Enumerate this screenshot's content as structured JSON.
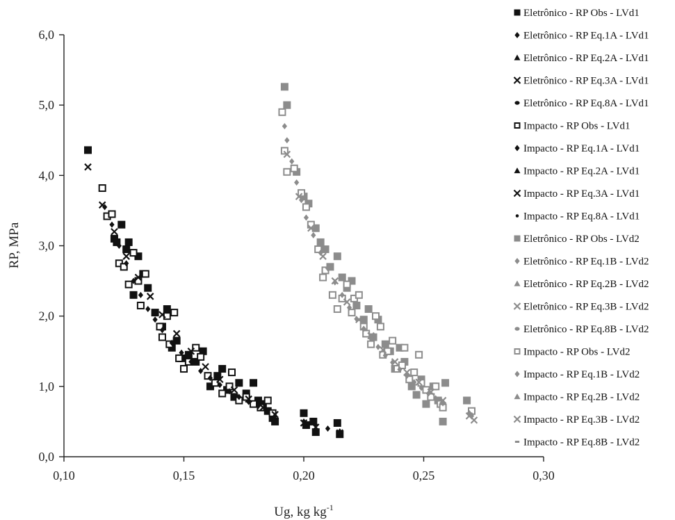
{
  "chart_data": {
    "type": "scatter",
    "title": "",
    "xlabel": "Ug, kg kg",
    "xlabel_sup": "-1",
    "ylabel": "RP, MPa",
    "xlim": [
      0.1,
      0.3
    ],
    "ylim": [
      0.0,
      6.0
    ],
    "x_ticks": [
      "0,10",
      "0,15",
      "0,20",
      "0,25",
      "0,30"
    ],
    "y_ticks": [
      "0,0",
      "1,0",
      "2,0",
      "3,0",
      "4,0",
      "5,0",
      "6,0"
    ],
    "grid": false,
    "legend_position": "right",
    "colors": {
      "lvd1": "#111111",
      "lvd2": "#8c8c8c"
    },
    "legend": [
      {
        "label": "Eletrônico - RP Obs - LVd1",
        "marker": "square-filled",
        "group": "lvd1"
      },
      {
        "label": "Eletrônico - RP Eq.1A - LVd1",
        "marker": "diamond",
        "group": "lvd1"
      },
      {
        "label": "Eletrônico - RP Eq.2A - LVd1",
        "marker": "triangle",
        "group": "lvd1"
      },
      {
        "label": "Eletrônico - RP Eq.3A - LVd1",
        "marker": "x",
        "group": "lvd1"
      },
      {
        "label": "Eletrônico - RP Eq.8A - LVd1",
        "marker": "circle",
        "group": "lvd1"
      },
      {
        "label": "Impacto - RP Obs - LVd1",
        "marker": "square-open",
        "group": "lvd1"
      },
      {
        "label": "Impacto - RP Eq.1A - LVd1",
        "marker": "diamond",
        "group": "lvd1"
      },
      {
        "label": "Impacto - RP Eq.2A - LVd1",
        "marker": "triangle",
        "group": "lvd1"
      },
      {
        "label": "Impacto - RP Eq.3A - LVd1",
        "marker": "x",
        "group": "lvd1"
      },
      {
        "label": "Impacto - RP Eq.8A - LVd1",
        "marker": "dot",
        "group": "lvd1"
      },
      {
        "label": "Eletrônico - RP Obs - LVd2",
        "marker": "square-filled",
        "group": "lvd2"
      },
      {
        "label": "Eletrônico - RP Eq.1B - LVd2",
        "marker": "diamond",
        "group": "lvd2"
      },
      {
        "label": "Eletrônico - RP Eq.2B - LVd2",
        "marker": "triangle",
        "group": "lvd2"
      },
      {
        "label": "Eletrônico - RP Eq.3B - LVd2",
        "marker": "x",
        "group": "lvd2"
      },
      {
        "label": "Eletrônico - RP Eq.8B - LVd2",
        "marker": "circle",
        "group": "lvd2"
      },
      {
        "label": "Impacto - RP Obs - LVd2",
        "marker": "square-open",
        "group": "lvd2"
      },
      {
        "label": "Impacto - RP Eq.1B - LVd2",
        "marker": "diamond",
        "group": "lvd2"
      },
      {
        "label": "Impacto - RP Eq.2B - LVd2",
        "marker": "triangle",
        "group": "lvd2"
      },
      {
        "label": "Impacto - RP Eq.3B - LVd2",
        "marker": "x",
        "group": "lvd2"
      },
      {
        "label": "Impacto - RP Eq.8B - LVd2",
        "marker": "dash",
        "group": "lvd2"
      }
    ],
    "series": [
      {
        "group": "lvd1",
        "marker": "square-filled",
        "x": [
          0.11,
          0.121,
          0.122,
          0.124,
          0.126,
          0.127,
          0.129,
          0.131,
          0.133,
          0.135,
          0.138,
          0.141,
          0.143,
          0.145,
          0.147,
          0.149,
          0.152,
          0.155,
          0.158,
          0.161,
          0.164,
          0.166,
          0.168,
          0.171,
          0.173,
          0.176,
          0.179,
          0.181,
          0.183,
          0.185,
          0.187,
          0.188,
          0.2,
          0.201,
          0.204,
          0.205,
          0.214,
          0.215
        ],
        "y": [
          4.36,
          3.1,
          3.05,
          3.3,
          2.95,
          3.05,
          2.3,
          2.85,
          2.6,
          2.4,
          2.05,
          1.85,
          2.1,
          1.55,
          1.65,
          1.4,
          1.45,
          1.35,
          1.5,
          1.0,
          1.15,
          1.25,
          0.95,
          0.85,
          1.05,
          0.9,
          1.05,
          0.8,
          0.75,
          0.65,
          0.55,
          0.5,
          0.62,
          0.45,
          0.5,
          0.35,
          0.48,
          0.32
        ]
      },
      {
        "group": "lvd1",
        "marker": "square-open",
        "x": [
          0.116,
          0.118,
          0.12,
          0.123,
          0.125,
          0.127,
          0.129,
          0.131,
          0.132,
          0.134,
          0.14,
          0.141,
          0.143,
          0.144,
          0.146,
          0.148,
          0.15,
          0.152,
          0.155,
          0.157,
          0.16,
          0.163,
          0.166,
          0.169,
          0.17,
          0.173,
          0.176,
          0.179,
          0.182,
          0.185,
          0.187
        ],
        "y": [
          3.82,
          3.42,
          3.45,
          2.75,
          2.7,
          2.45,
          2.9,
          2.5,
          2.15,
          2.6,
          1.85,
          1.7,
          2.0,
          1.6,
          2.05,
          1.4,
          1.25,
          1.35,
          1.55,
          1.42,
          1.15,
          1.05,
          0.9,
          1.0,
          1.2,
          0.8,
          0.85,
          0.75,
          0.7,
          0.8,
          0.62
        ]
      },
      {
        "group": "lvd1",
        "marker": "diamond",
        "x": [
          0.11,
          0.117,
          0.12,
          0.123,
          0.126,
          0.129,
          0.132,
          0.135,
          0.138,
          0.141,
          0.145,
          0.149,
          0.153,
          0.157,
          0.161,
          0.165,
          0.169,
          0.173,
          0.177,
          0.181,
          0.185,
          0.188,
          0.2,
          0.205,
          0.21,
          0.215
        ],
        "y": [
          4.35,
          3.55,
          3.3,
          3.0,
          2.75,
          2.5,
          2.3,
          2.1,
          1.95,
          1.8,
          1.62,
          1.48,
          1.35,
          1.22,
          1.12,
          1.02,
          0.93,
          0.85,
          0.78,
          0.72,
          0.64,
          0.58,
          0.5,
          0.45,
          0.4,
          0.36
        ]
      },
      {
        "group": "lvd1",
        "marker": "x",
        "x": [
          0.11,
          0.116,
          0.121,
          0.126,
          0.131,
          0.136,
          0.141,
          0.147,
          0.153,
          0.159,
          0.165,
          0.171,
          0.177,
          0.183,
          0.188,
          0.2,
          0.205,
          0.215
        ],
        "y": [
          4.12,
          3.58,
          3.2,
          2.85,
          2.55,
          2.28,
          2.02,
          1.75,
          1.5,
          1.28,
          1.1,
          0.95,
          0.82,
          0.7,
          0.6,
          0.48,
          0.42,
          0.34
        ]
      },
      {
        "group": "lvd2",
        "marker": "square-filled",
        "x": [
          0.192,
          0.193,
          0.197,
          0.2,
          0.202,
          0.205,
          0.207,
          0.209,
          0.211,
          0.214,
          0.216,
          0.218,
          0.22,
          0.222,
          0.225,
          0.227,
          0.229,
          0.231,
          0.234,
          0.236,
          0.238,
          0.24,
          0.242,
          0.245,
          0.247,
          0.249,
          0.251,
          0.254,
          0.256,
          0.258,
          0.259,
          0.268
        ],
        "y": [
          5.26,
          5.0,
          4.05,
          3.7,
          3.6,
          3.25,
          3.05,
          2.95,
          2.7,
          2.85,
          2.55,
          2.4,
          2.5,
          2.15,
          1.95,
          2.1,
          1.7,
          1.95,
          1.6,
          1.5,
          1.25,
          1.55,
          1.35,
          1.0,
          0.88,
          1.1,
          0.75,
          1.0,
          0.8,
          0.5,
          1.05,
          0.8
        ]
      },
      {
        "group": "lvd2",
        "marker": "square-open",
        "x": [
          0.191,
          0.192,
          0.193,
          0.196,
          0.199,
          0.201,
          0.203,
          0.206,
          0.208,
          0.209,
          0.212,
          0.214,
          0.216,
          0.218,
          0.22,
          0.221,
          0.223,
          0.225,
          0.226,
          0.228,
          0.23,
          0.232,
          0.233,
          0.235,
          0.237,
          0.239,
          0.241,
          0.242,
          0.244,
          0.246,
          0.248,
          0.249,
          0.251,
          0.253,
          0.255,
          0.257,
          0.258,
          0.27
        ],
        "y": [
          4.9,
          4.35,
          4.05,
          4.1,
          3.75,
          3.55,
          3.3,
          2.95,
          2.55,
          2.65,
          2.3,
          2.1,
          2.25,
          2.45,
          2.05,
          2.25,
          2.3,
          1.85,
          1.75,
          1.6,
          2.0,
          1.85,
          1.45,
          1.5,
          1.65,
          1.25,
          1.3,
          1.55,
          1.1,
          1.2,
          1.45,
          1.05,
          0.95,
          0.85,
          1.0,
          0.75,
          0.7,
          0.65
        ]
      },
      {
        "group": "lvd2",
        "marker": "diamond",
        "x": [
          0.192,
          0.193,
          0.195,
          0.197,
          0.199,
          0.201,
          0.204,
          0.207,
          0.21,
          0.213,
          0.216,
          0.219,
          0.222,
          0.225,
          0.228,
          0.231,
          0.234,
          0.237,
          0.24,
          0.243,
          0.246,
          0.249,
          0.252,
          0.255,
          0.258,
          0.269,
          0.27
        ],
        "y": [
          4.7,
          4.5,
          4.2,
          3.9,
          3.65,
          3.4,
          3.15,
          2.9,
          2.68,
          2.48,
          2.3,
          2.12,
          1.96,
          1.82,
          1.68,
          1.56,
          1.44,
          1.34,
          1.24,
          1.15,
          1.06,
          0.98,
          0.9,
          0.83,
          0.76,
          0.62,
          0.58
        ]
      },
      {
        "group": "lvd2",
        "marker": "x",
        "x": [
          0.193,
          0.198,
          0.203,
          0.208,
          0.213,
          0.218,
          0.223,
          0.228,
          0.233,
          0.238,
          0.243,
          0.248,
          0.253,
          0.258,
          0.269,
          0.271
        ],
        "y": [
          4.3,
          3.7,
          3.25,
          2.85,
          2.5,
          2.2,
          1.95,
          1.72,
          1.52,
          1.35,
          1.2,
          1.06,
          0.92,
          0.8,
          0.58,
          0.52
        ]
      }
    ]
  }
}
